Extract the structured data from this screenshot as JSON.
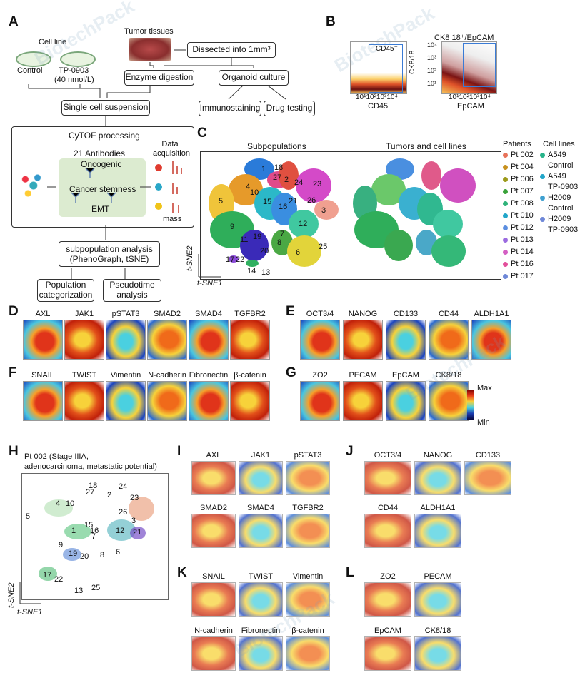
{
  "panels": {
    "A": "A",
    "B": "B",
    "C": "C",
    "D": "D",
    "E": "E",
    "F": "F",
    "G": "G",
    "H": "H",
    "I": "I",
    "J": "J",
    "K": "K",
    "L": "L"
  },
  "panelA": {
    "cell_line": "Cell line",
    "control": "Control",
    "tp0903": "TP-0903",
    "tp_dose": "(40 nmol/L)",
    "tumor_tissues": "Tumor tissues",
    "dissected": "Dissected into 1mm³",
    "enzyme": "Enzyme digestion",
    "organoid": "Organoid culture",
    "single_cell": "Single cell suspension",
    "immunostaining": "Immunostaining",
    "drug_testing": "Drug testing",
    "cytof": "CyTOF processing",
    "antibodies": "21 Antibodies",
    "oncogenic": "Oncogenic",
    "stemness": "Cancer stemness",
    "emt": "EMT",
    "data_acq": "Data acquisition",
    "mass": "mass",
    "subpop_analysis": "subpopulation analysis",
    "phenograph": "(PhenoGraph, tSNE)",
    "population_cat": "Population categorization",
    "pseudotime": "Pseudotime analysis"
  },
  "panelB": {
    "cd45_gate": "CD45⁻",
    "x1_ticks": "10¹10²10³10⁴",
    "x1_label": "CD45",
    "title2": "CK8  18⁺/EpCAM⁺",
    "y2_label": "CK8/18",
    "y2_ticks": [
      "10⁴",
      "10³",
      "10²",
      "10¹"
    ],
    "x2_ticks": "10¹10²10³10⁴",
    "x2_label": "EpCAM"
  },
  "panelC": {
    "title_left": "Subpopulations",
    "title_right": "Tumors and cell lines",
    "axis_y": "t-SNE2",
    "axis_x": "t-SNE1",
    "cluster_labels": [
      "1",
      "2",
      "3",
      "4",
      "5",
      "6",
      "7",
      "8",
      "9",
      "10",
      "11",
      "12",
      "13",
      "14",
      "15",
      "16",
      "17",
      "18",
      "19",
      "20",
      "21",
      "22",
      "23",
      "24",
      "25",
      "26",
      "27"
    ],
    "patients_title": "Patients",
    "patients": [
      {
        "name": "Pt 002",
        "color": "#e8735a"
      },
      {
        "name": "Pt 004",
        "color": "#c8911e"
      },
      {
        "name": "Pt 006",
        "color": "#9c9a1a"
      },
      {
        "name": "Pt 007",
        "color": "#3aa23a"
      },
      {
        "name": "Pt 008",
        "color": "#2fb37a"
      },
      {
        "name": "Pt 010",
        "color": "#22a6c9"
      },
      {
        "name": "Pt 012",
        "color": "#5b8ee0"
      },
      {
        "name": "Pt 013",
        "color": "#9b6be0"
      },
      {
        "name": "Pt 014",
        "color": "#d45fc4"
      },
      {
        "name": "Pt 016",
        "color": "#e34f9b"
      },
      {
        "name": "Pt 017",
        "color": "#6f88d8"
      }
    ],
    "celllines_title": "Cell lines",
    "celllines": [
      {
        "l1": "A549",
        "l2": "Control",
        "color": "#28b48a"
      },
      {
        "l1": "A549",
        "l2": "TP-0903",
        "color": "#22a6c9"
      },
      {
        "l1": "H2009",
        "l2": "Control",
        "color": "#3fa0d0"
      },
      {
        "l1": "H2009",
        "l2": "TP-0903",
        "color": "#6f88d8"
      }
    ]
  },
  "panelD": [
    "AXL",
    "JAK1",
    "pSTAT3",
    "SMAD2",
    "SMAD4",
    "TGFBR2"
  ],
  "panelE": [
    "OCT3/4",
    "NANOG",
    "CD133",
    "CD44",
    "ALDH1A1"
  ],
  "panelF": [
    "SNAIL",
    "TWIST",
    "Vimentin",
    "N-cadherin",
    "Fibronectin",
    "β-catenin"
  ],
  "panelG": [
    "ZO2",
    "PECAM",
    "EpCAM",
    "CK8/18"
  ],
  "scale": {
    "max": "Max",
    "min": "Min"
  },
  "panelH": {
    "title1": "Pt 002 (Stage IIIA,",
    "title2": "adenocarcinoma, metastatic potential)",
    "axis_y": "t-SNE2",
    "axis_x": "t-SNE1",
    "clusters": [
      "18",
      "27",
      "2",
      "24",
      "23",
      "4",
      "10",
      "26",
      "3",
      "1",
      "15",
      "16",
      "7",
      "12",
      "21",
      "5",
      "9",
      "19",
      "20",
      "8",
      "6",
      "17",
      "22",
      "13",
      "25"
    ]
  },
  "panelI": {
    "row1": [
      "AXL",
      "JAK1",
      "pSTAT3"
    ],
    "row2": [
      "SMAD2",
      "SMAD4",
      "TGFBR2"
    ]
  },
  "panelJ": {
    "row1": [
      "OCT3/4",
      "NANOG",
      "CD133"
    ],
    "row2": [
      "CD44",
      "ALDH1A1"
    ]
  },
  "panelK": {
    "row1": [
      "SNAIL",
      "TWIST",
      "Vimentin"
    ],
    "row2": [
      "N-cadherin",
      "Fibronectin",
      "β-catenin"
    ]
  },
  "panelL": {
    "row1": [
      "ZO2",
      "PECAM"
    ],
    "row2": [
      "EpCAM",
      "CK8/18"
    ]
  }
}
